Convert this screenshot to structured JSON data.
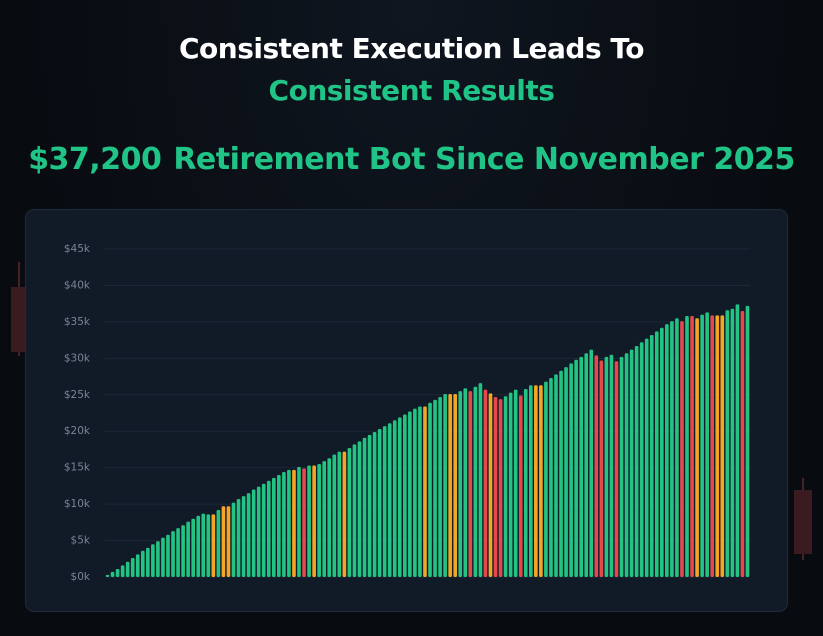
{
  "header": {
    "title_line1": "Consistent Execution Leads To",
    "title_line2": "Consistent Results",
    "amount": "$37,200",
    "subtitle": "Retirement Bot Since November 2025"
  },
  "chart_data": {
    "type": "bar",
    "values": [
      300,
      700,
      1100,
      1600,
      2100,
      2600,
      3100,
      3600,
      4000,
      4500,
      4900,
      5400,
      5800,
      6300,
      6700,
      7100,
      7600,
      8000,
      8400,
      8700,
      8600,
      8600,
      9200,
      9700,
      9700,
      10200,
      10700,
      11100,
      11500,
      12000,
      12400,
      12800,
      13200,
      13600,
      14000,
      14400,
      14700,
      14700,
      15100,
      14900,
      15300,
      15300,
      15500,
      15900,
      16300,
      16800,
      17200,
      17200,
      17700,
      18200,
      18600,
      19100,
      19500,
      19900,
      20300,
      20700,
      21100,
      21500,
      21900,
      22300,
      22700,
      23100,
      23400,
      23400,
      23900,
      24300,
      24700,
      25100,
      25100,
      25100,
      25500,
      25900,
      25500,
      26100,
      26600,
      25700,
      25200,
      24700,
      24400,
      24800,
      25300,
      25700,
      24900,
      25800,
      26300,
      26300,
      26300,
      26800,
      27300,
      27800,
      28300,
      28800,
      29300,
      29800,
      30200,
      30700,
      31200,
      30400,
      29700,
      30200,
      30500,
      29600,
      30200,
      30700,
      31200,
      31700,
      32200,
      32700,
      33200,
      33700,
      34200,
      34700,
      35100,
      35500,
      35100,
      35800,
      35800,
      35500,
      36000,
      36300,
      35900,
      35900,
      35900,
      36600,
      36800,
      37400,
      36500,
      37200
    ],
    "colors": [
      "#22c383",
      "#22c383",
      "#22c383",
      "#22c383",
      "#22c383",
      "#22c383",
      "#22c383",
      "#22c383",
      "#22c383",
      "#22c383",
      "#22c383",
      "#22c383",
      "#22c383",
      "#22c383",
      "#22c383",
      "#22c383",
      "#22c383",
      "#22c383",
      "#22c383",
      "#22c383",
      "#22c383",
      "#f5a524",
      "#22c383",
      "#f5a524",
      "#f5a524",
      "#22c383",
      "#22c383",
      "#22c383",
      "#22c383",
      "#22c383",
      "#22c383",
      "#22c383",
      "#22c383",
      "#22c383",
      "#22c383",
      "#22c383",
      "#22c383",
      "#f5a524",
      "#22c383",
      "#e5484d",
      "#22c383",
      "#f5a524",
      "#22c383",
      "#22c383",
      "#22c383",
      "#22c383",
      "#22c383",
      "#f5a524",
      "#22c383",
      "#22c383",
      "#22c383",
      "#22c383",
      "#22c383",
      "#22c383",
      "#22c383",
      "#22c383",
      "#22c383",
      "#22c383",
      "#22c383",
      "#22c383",
      "#22c383",
      "#22c383",
      "#22c383",
      "#f5a524",
      "#22c383",
      "#22c383",
      "#22c383",
      "#22c383",
      "#f5a524",
      "#f5a524",
      "#22c383",
      "#22c383",
      "#e5484d",
      "#22c383",
      "#22c383",
      "#e5484d",
      "#f5a524",
      "#e5484d",
      "#e5484d",
      "#22c383",
      "#22c383",
      "#22c383",
      "#e5484d",
      "#22c383",
      "#22c383",
      "#f5a524",
      "#f5a524",
      "#22c383",
      "#22c383",
      "#22c383",
      "#22c383",
      "#22c383",
      "#22c383",
      "#22c383",
      "#22c383",
      "#22c383",
      "#22c383",
      "#e5484d",
      "#e5484d",
      "#22c383",
      "#22c383",
      "#e5484d",
      "#22c383",
      "#22c383",
      "#22c383",
      "#22c383",
      "#22c383",
      "#22c383",
      "#22c383",
      "#22c383",
      "#22c383",
      "#22c383",
      "#22c383",
      "#22c383",
      "#e5484d",
      "#22c383",
      "#e5484d",
      "#f5a524",
      "#22c383",
      "#22c383",
      "#e5484d",
      "#f5a524",
      "#f5a524",
      "#22c383",
      "#22c383",
      "#22c383",
      "#e5484d",
      "#22c383"
    ],
    "ylim": [
      0,
      45000
    ],
    "yticks": [
      {
        "value": 0,
        "label": "$0k"
      },
      {
        "value": 5000,
        "label": "$5k"
      },
      {
        "value": 10000,
        "label": "$10k"
      },
      {
        "value": 15000,
        "label": "$15k"
      },
      {
        "value": 20000,
        "label": "$20k"
      },
      {
        "value": 25000,
        "label": "$25k"
      },
      {
        "value": 30000,
        "label": "$30k"
      },
      {
        "value": 35000,
        "label": "$35k"
      },
      {
        "value": 40000,
        "label": "$40k"
      },
      {
        "value": 45000,
        "label": "$45k"
      }
    ],
    "grid": true
  }
}
